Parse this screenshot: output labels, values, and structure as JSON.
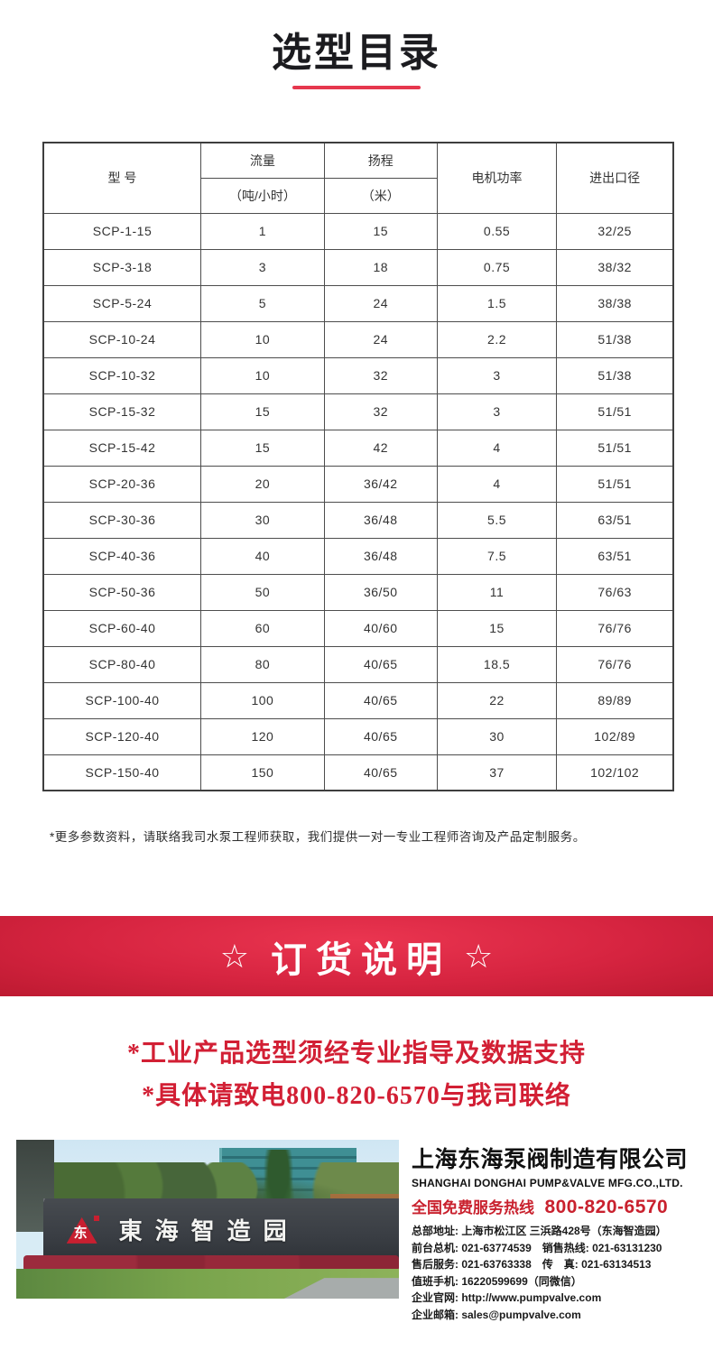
{
  "page": {
    "title": "选型目录"
  },
  "table": {
    "header": {
      "model": "型 号",
      "flow": "流量",
      "flow_unit": "（吨/小时）",
      "head": "扬程",
      "head_unit": "（米）",
      "power": "电机功率",
      "diameter": "进出口径"
    },
    "rows": [
      [
        "SCP-1-15",
        "1",
        "15",
        "0.55",
        "32/25"
      ],
      [
        "SCP-3-18",
        "3",
        "18",
        "0.75",
        "38/32"
      ],
      [
        "SCP-5-24",
        "5",
        "24",
        "1.5",
        "38/38"
      ],
      [
        "SCP-10-24",
        "10",
        "24",
        "2.2",
        "51/38"
      ],
      [
        "SCP-10-32",
        "10",
        "32",
        "3",
        "51/38"
      ],
      [
        "SCP-15-32",
        "15",
        "32",
        "3",
        "51/51"
      ],
      [
        "SCP-15-42",
        "15",
        "42",
        "4",
        "51/51"
      ],
      [
        "SCP-20-36",
        "20",
        "36/42",
        "4",
        "51/51"
      ],
      [
        "SCP-30-36",
        "30",
        "36/48",
        "5.5",
        "63/51"
      ],
      [
        "SCP-40-36",
        "40",
        "36/48",
        "7.5",
        "63/51"
      ],
      [
        "SCP-50-36",
        "50",
        "36/50",
        "11",
        "76/63"
      ],
      [
        "SCP-60-40",
        "60",
        "40/60",
        "15",
        "76/76"
      ],
      [
        "SCP-80-40",
        "80",
        "40/65",
        "18.5",
        "76/76"
      ],
      [
        "SCP-100-40",
        "100",
        "40/65",
        "22",
        "89/89"
      ],
      [
        "SCP-120-40",
        "120",
        "40/65",
        "30",
        "102/89"
      ],
      [
        "SCP-150-40",
        "150",
        "40/65",
        "37",
        "102/102"
      ]
    ]
  },
  "note": "*更多参数资料，请联络我司水泵工程师获取，我们提供一对一专业工程师咨询及产品定制服务。",
  "banner": {
    "star": "☆",
    "title": "订货说明"
  },
  "order_notes": [
    "*工业产品选型须经专业指导及数据支持",
    "*具体请致电800-820-6570与我司联络"
  ],
  "photo": {
    "sign_text": "東海智造园",
    "logo_char": "东"
  },
  "company": {
    "name_cn": "上海东海泵阀制造有限公司",
    "name_en": "SHANGHAI DONGHAI PUMP&VALVE MFG.CO.,LTD.",
    "hotline_label": "全国免费服务热线",
    "hotline_number": "800-820-6570",
    "details": [
      "总部地址: 上海市松江区 三浜路428号（东海智造园）",
      "前台总机: 021-63774539　销售热线: 021-63131230",
      "售后服务: 021-63763338　传　真: 021-63134513",
      "值班手机: 16220599699（同微信）",
      "企业官网: http://www.pumpvalve.com",
      "企业邮箱: sales@pumpvalve.com"
    ]
  },
  "colors": {
    "banner_red": "#d62440",
    "accent_red": "#d21f34",
    "underline_red": "#e6374e",
    "hotline_red": "#c9212e"
  }
}
